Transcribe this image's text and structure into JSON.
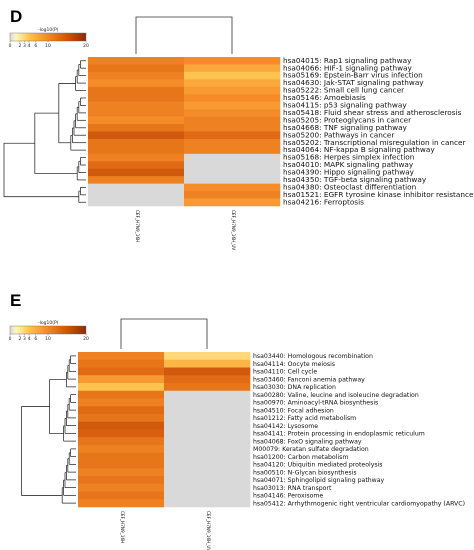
{
  "chart_data": [
    {
      "type": "heatmap",
      "panel_label": "D",
      "legend": {
        "title": "-log10(P)",
        "ticks": [
          "0",
          "2",
          "3",
          "4",
          "6",
          "10",
          "20"
        ],
        "min": 0,
        "max": 20
      },
      "columns": [
        "CEF_H7N9_16H",
        "CEF_H7N9_16H_UV"
      ],
      "rows": [
        "hsa04015: Rap1 signaling pathway",
        "hsa04066: HIF-1 signaling pathway",
        "hsa05169: Epstein-Barr virus infection",
        "hsa04630: Jak-STAT signaling pathway",
        "hsa05222: Small cell lung cancer",
        "hsa05146: Amoebiasis",
        "hsa04115: p53 signaling pathway",
        "hsa05418: Fluid shear stress and atherosclerosis",
        "hsa05205: Proteoglycans in cancer",
        "hsa04668: TNF signaling pathway",
        "hsa05200: Pathways in cancer",
        "hsa05202: Transcriptional misregulation in cancer",
        "hsa04064: NF-kappa B signaling pathway",
        "hsa05168: Herpes simplex infection",
        "hsa04010: MAPK signaling pathway",
        "hsa04390: Hippo signaling pathway",
        "hsa04350: TGF-beta signaling pathway",
        "hsa04380: Osteoclast differentiation",
        "hsa01521: EGFR tyrosine kinase inhibitor resistance",
        "hsa04216: Ferroptosis"
      ],
      "values": [
        [
          9,
          8
        ],
        [
          10,
          6
        ],
        [
          9,
          4
        ],
        [
          8,
          6
        ],
        [
          10,
          7
        ],
        [
          10,
          8
        ],
        [
          9,
          7
        ],
        [
          9,
          8
        ],
        [
          8,
          9
        ],
        [
          10,
          9
        ],
        [
          13,
          11
        ],
        [
          10,
          9
        ],
        [
          10,
          9
        ],
        [
          9,
          null
        ],
        [
          11,
          null
        ],
        [
          13,
          null
        ],
        [
          9,
          null
        ],
        [
          null,
          8
        ],
        [
          null,
          9
        ],
        [
          null,
          7
        ]
      ]
    },
    {
      "type": "heatmap",
      "panel_label": "E",
      "legend": {
        "title": "-log10(P)",
        "ticks": [
          "0",
          "2",
          "3",
          "4",
          "6",
          "10",
          "20"
        ],
        "min": 0,
        "max": 20
      },
      "columns": [
        "CEF_H7N9_16H",
        "CEF_H7N9_16H_UV"
      ],
      "rows": [
        "hsa03440: Homologous recombination",
        "hsa04114: Oocyte meiosis",
        "hsa04110: Cell cycle",
        "hsa03460: Fanconi anemia pathway",
        "hsa03030: DNA replication",
        "hsa00280: Valine, leucine and isoleucine degradation",
        "hsa00970: Aminoacyl-tRNA biosynthesis",
        "hsa04510: Focal adhesion",
        "hsa01212: Fatty acid metabolism",
        "hsa04142: Lysosome",
        "hsa04141: Protein processing in endoplasmic reticulum",
        "hsa04068: FoxO signaling pathway",
        "M00079: Keratan sulfate degradation",
        "hsa01200: Carbon metabolism",
        "hsa04120: Ubiquitin mediated proteolysis",
        "hsa00510: N-Glycan biosynthesis",
        "hsa04071: Sphingolipid signaling pathway",
        "hsa03013: RNA transport",
        "hsa04146: Peroxisome",
        "hsa05412: Arrhythmogenic right ventricular cardiomyopathy (ARVC)"
      ],
      "values": [
        [
          9,
          3
        ],
        [
          10,
          5
        ],
        [
          11,
          13
        ],
        [
          7,
          11
        ],
        [
          4,
          10
        ],
        [
          10,
          null
        ],
        [
          9,
          null
        ],
        [
          11,
          null
        ],
        [
          10,
          null
        ],
        [
          13,
          null
        ],
        [
          12,
          null
        ],
        [
          10,
          null
        ],
        [
          9,
          null
        ],
        [
          10,
          null
        ],
        [
          10,
          null
        ],
        [
          9,
          null
        ],
        [
          10,
          null
        ],
        [
          9,
          null
        ],
        [
          10,
          null
        ],
        [
          9,
          null
        ]
      ]
    }
  ]
}
